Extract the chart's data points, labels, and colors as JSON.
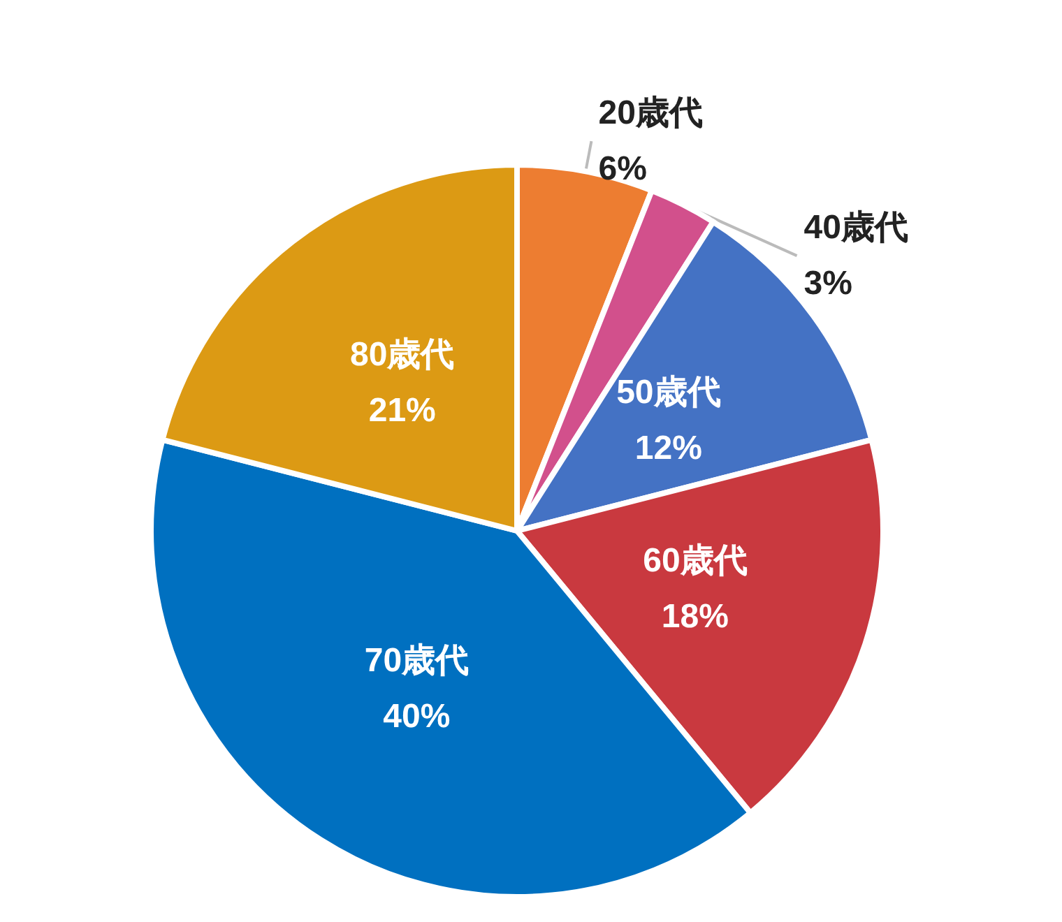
{
  "chart_data": {
    "type": "pie",
    "categories": [
      "20歳代",
      "40歳代",
      "50歳代",
      "60歳代",
      "70歳代",
      "80歳代"
    ],
    "values": [
      6,
      3,
      12,
      18,
      40,
      21
    ],
    "value_labels": [
      "6%",
      "3%",
      "12%",
      "18%",
      "40%",
      "21%"
    ],
    "colors": [
      "#ed7d31",
      "#d2508c",
      "#4472c4",
      "#c9393f",
      "#0070c0",
      "#dc9a14"
    ]
  }
}
